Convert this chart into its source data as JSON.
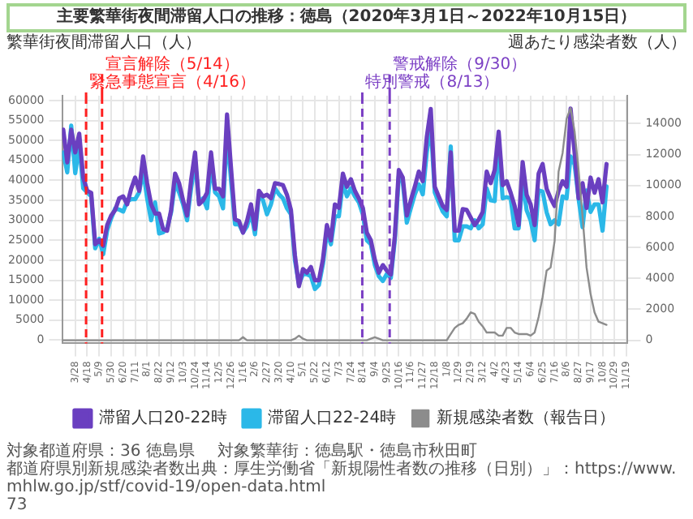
{
  "chart_data": {
    "type": "line",
    "title": "主要繁華街夜間滞留人口の推移：徳島（2020年3月1日～2022年10月15日）",
    "ylabel": "繁華街夜間滞留人口（人）",
    "y2label": "週あたり感染者数（人）",
    "x": [
      "2020-03-07",
      "2020-03-14",
      "2020-03-21",
      "2020-03-28",
      "2020-04-04",
      "2020-04-11",
      "2020-04-18",
      "2020-04-25",
      "2020-05-02",
      "2020-05-09",
      "2020-05-16",
      "2020-05-23",
      "2020-05-30",
      "2020-06-06",
      "2020-06-13",
      "2020-06-20",
      "2020-06-27",
      "2020-07-04",
      "2020-07-11",
      "2020-07-18",
      "2020-07-25",
      "2020-08-01",
      "2020-08-08",
      "2020-08-15",
      "2020-08-22",
      "2020-08-29",
      "2020-09-05",
      "2020-09-12",
      "2020-09-19",
      "2020-09-26",
      "2020-10-03",
      "2020-10-10",
      "2020-10-17",
      "2020-10-24",
      "2020-10-31",
      "2020-11-07",
      "2020-11-14",
      "2020-11-21",
      "2020-11-28",
      "2020-12-05",
      "2020-12-12",
      "2020-12-19",
      "2020-12-26",
      "2021-01-02",
      "2021-01-09",
      "2021-01-16",
      "2021-01-23",
      "2021-01-30",
      "2021-02-06",
      "2021-02-13",
      "2021-02-20",
      "2021-02-27",
      "2021-03-06",
      "2021-03-13",
      "2021-03-20",
      "2021-03-27",
      "2021-04-03",
      "2021-04-10",
      "2021-04-17",
      "2021-04-24",
      "2021-05-01",
      "2021-05-08",
      "2021-05-15",
      "2021-05-22",
      "2021-05-29",
      "2021-06-05",
      "2021-06-12",
      "2021-06-19",
      "2021-06-26",
      "2021-07-03",
      "2021-07-10",
      "2021-07-17",
      "2021-07-24",
      "2021-07-31",
      "2021-08-07",
      "2021-08-14",
      "2021-08-21",
      "2021-08-28",
      "2021-09-04",
      "2021-09-11",
      "2021-09-18",
      "2021-09-25",
      "2021-10-02",
      "2021-10-09",
      "2021-10-16",
      "2021-10-23",
      "2021-10-30",
      "2021-11-06",
      "2021-11-13",
      "2021-11-20",
      "2021-11-27",
      "2021-12-04",
      "2021-12-11",
      "2021-12-18",
      "2021-12-25",
      "2022-01-01",
      "2022-01-08",
      "2022-01-15",
      "2022-01-22",
      "2022-01-29",
      "2022-02-05",
      "2022-02-12",
      "2022-02-19",
      "2022-02-26",
      "2022-03-05",
      "2022-03-12",
      "2022-03-19",
      "2022-03-26",
      "2022-04-02",
      "2022-04-09",
      "2022-04-16",
      "2022-04-23",
      "2022-04-30",
      "2022-05-07",
      "2022-05-14",
      "2022-05-21",
      "2022-05-28",
      "2022-06-04",
      "2022-06-11",
      "2022-06-18",
      "2022-06-25",
      "2022-07-02",
      "2022-07-09",
      "2022-07-16",
      "2022-07-23",
      "2022-07-30",
      "2022-08-06",
      "2022-08-13",
      "2022-08-20",
      "2022-08-27",
      "2022-09-03",
      "2022-09-10",
      "2022-09-17",
      "2022-09-24",
      "2022-10-01",
      "2022-10-08",
      "2022-10-15"
    ],
    "series": [
      {
        "name": "滞留人口20-22時",
        "color": "#6a3fc0",
        "values": [
          52700,
          44500,
          52700,
          47000,
          51700,
          40700,
          37400,
          36900,
          24000,
          25000,
          23600,
          28800,
          31200,
          32600,
          35500,
          36000,
          34000,
          37900,
          40700,
          37400,
          46000,
          39300,
          34000,
          31700,
          31700,
          27800,
          27400,
          32600,
          41700,
          39300,
          35000,
          31200,
          40000,
          47000,
          34000,
          35000,
          36900,
          47000,
          37900,
          37900,
          36000,
          56500,
          43100,
          30200,
          29800,
          26900,
          29800,
          34000,
          27800,
          37400,
          36000,
          36400,
          35500,
          39300,
          39100,
          38800,
          36400,
          32600,
          21200,
          13500,
          17800,
          16900,
          18300,
          15000,
          15000,
          20200,
          28800,
          25000,
          34000,
          33100,
          41700,
          38400,
          40300,
          37400,
          35500,
          33100,
          26900,
          25000,
          20200,
          16900,
          18800,
          17400,
          16400,
          26000,
          42600,
          40700,
          31200,
          35000,
          38400,
          42200,
          39800,
          50800,
          57900,
          38400,
          36000,
          33600,
          32600,
          47000,
          27400,
          27400,
          32800,
          32600,
          30700,
          28800,
          30200,
          32100,
          42200,
          39300,
          42600,
          52200,
          38800,
          39800,
          36900,
          33600,
          28800,
          44600,
          36400,
          34000,
          28800,
          41700,
          44100,
          37900,
          35500,
          33600,
          37400,
          39800,
          38400,
          58000,
          47000,
          35500,
          39300,
          33100,
          40700,
          36900,
          40300,
          34500,
          44100
        ]
      },
      {
        "name": "滞留人口22-24時",
        "color": "#2bb8e8",
        "values": [
          47000,
          42000,
          53700,
          41800,
          49000,
          38000,
          37000,
          36000,
          23000,
          25400,
          21500,
          27500,
          30500,
          33000,
          32700,
          32200,
          34700,
          35300,
          35300,
          37000,
          42500,
          35500,
          30000,
          34500,
          26700,
          27000,
          28000,
          32000,
          39500,
          37000,
          34000,
          30000,
          38000,
          44500,
          34500,
          35500,
          33000,
          44000,
          37000,
          36000,
          33000,
          52000,
          40000,
          29000,
          29000,
          27000,
          28500,
          32000,
          26500,
          36500,
          35000,
          31500,
          34000,
          38000,
          36500,
          35500,
          33000,
          31500,
          20000,
          14000,
          16500,
          16500,
          16000,
          12800,
          13800,
          19000,
          27000,
          24000,
          31000,
          31000,
          39500,
          36000,
          38000,
          36000,
          34500,
          31500,
          25000,
          24000,
          18800,
          16000,
          14800,
          16600,
          15600,
          25000,
          41000,
          39500,
          29400,
          33000,
          36500,
          39000,
          36500,
          47000,
          54000,
          37000,
          34500,
          32200,
          31000,
          48500,
          25000,
          25000,
          28500,
          28500,
          28000,
          30000,
          28000,
          29000,
          38000,
          35000,
          34800,
          49500,
          35500,
          35800,
          35500,
          28000,
          28000,
          40000,
          32500,
          30000,
          25000,
          37500,
          37200,
          32000,
          29000,
          30000,
          29000,
          36000,
          35500,
          46000,
          44000,
          35500,
          28300,
          37500,
          32100,
          34000,
          34000,
          27400,
          38500
        ]
      },
      {
        "name": "新規感染者数（報告日）",
        "color": "#8c8c8c",
        "axis": "y2",
        "values": [
          0,
          0,
          0,
          0,
          0,
          0,
          0,
          0,
          0,
          0,
          0,
          0,
          0,
          0,
          0,
          0,
          0,
          0,
          0,
          0,
          0,
          0,
          0,
          0,
          0,
          0,
          0,
          0,
          0,
          0,
          0,
          0,
          0,
          0,
          0,
          0,
          0,
          0,
          0,
          0,
          0,
          0,
          0,
          0,
          0,
          200,
          0,
          0,
          0,
          0,
          0,
          0,
          0,
          0,
          0,
          0,
          0,
          0,
          100,
          300,
          100,
          0,
          0,
          0,
          0,
          0,
          0,
          0,
          0,
          0,
          0,
          0,
          0,
          0,
          0,
          0,
          0,
          100,
          200,
          100,
          0,
          0,
          0,
          0,
          0,
          0,
          0,
          0,
          0,
          0,
          0,
          0,
          0,
          0,
          0,
          0,
          0,
          400,
          800,
          1000,
          1100,
          1400,
          1800,
          1700,
          1200,
          900,
          500,
          500,
          500,
          300,
          300,
          800,
          800,
          500,
          400,
          400,
          400,
          300,
          500,
          1500,
          2800,
          4500,
          4700,
          6400,
          10900,
          12100,
          14300,
          15000,
          13500,
          11000,
          8000,
          4700,
          3000,
          1800,
          1200,
          1100,
          1000
        ]
      }
    ],
    "xlim": [
      "2020-03-05",
      "2022-11-21"
    ],
    "xticks": [
      {
        "value": "2020-03-28",
        "label": "3/28"
      },
      {
        "value": "2020-04-18",
        "label": "4/18"
      },
      {
        "value": "2020-05-09",
        "label": "5/9"
      },
      {
        "value": "2020-05-30",
        "label": "5/30"
      },
      {
        "value": "2020-06-20",
        "label": "6/20"
      },
      {
        "value": "2020-07-11",
        "label": "7/11"
      },
      {
        "value": "2020-08-01",
        "label": "8/1"
      },
      {
        "value": "2020-08-22",
        "label": "8/22"
      },
      {
        "value": "2020-09-12",
        "label": "9/12"
      },
      {
        "value": "2020-10-03",
        "label": "10/3"
      },
      {
        "value": "2020-10-24",
        "label": "10/24"
      },
      {
        "value": "2020-11-14",
        "label": "11/14"
      },
      {
        "value": "2020-12-05",
        "label": "12/5"
      },
      {
        "value": "2020-12-26",
        "label": "12/26"
      },
      {
        "value": "2021-01-16",
        "label": "1/16"
      },
      {
        "value": "2021-02-06",
        "label": "2/6"
      },
      {
        "value": "2021-02-27",
        "label": "2/27"
      },
      {
        "value": "2021-03-20",
        "label": "3/20"
      },
      {
        "value": "2021-04-10",
        "label": "4/10"
      },
      {
        "value": "2021-05-01",
        "label": "5/1"
      },
      {
        "value": "2021-05-22",
        "label": "5/22"
      },
      {
        "value": "2021-06-12",
        "label": "6/12"
      },
      {
        "value": "2021-07-03",
        "label": "7/3"
      },
      {
        "value": "2021-07-24",
        "label": "7/24"
      },
      {
        "value": "2021-08-14",
        "label": "8/14"
      },
      {
        "value": "2021-09-04",
        "label": "9/4"
      },
      {
        "value": "2021-09-25",
        "label": "9/25"
      },
      {
        "value": "2021-10-16",
        "label": "10/16"
      },
      {
        "value": "2021-11-06",
        "label": "11/6"
      },
      {
        "value": "2021-11-27",
        "label": "11/27"
      },
      {
        "value": "2021-12-18",
        "label": "12/18"
      },
      {
        "value": "2022-01-08",
        "label": "1/8"
      },
      {
        "value": "2022-01-29",
        "label": "1/29"
      },
      {
        "value": "2022-02-19",
        "label": "2/19"
      },
      {
        "value": "2022-03-12",
        "label": "3/12"
      },
      {
        "value": "2022-04-02",
        "label": "4/2"
      },
      {
        "value": "2022-04-23",
        "label": "4/23"
      },
      {
        "value": "2022-05-14",
        "label": "5/14"
      },
      {
        "value": "2022-06-04",
        "label": "6/4"
      },
      {
        "value": "2022-06-25",
        "label": "6/25"
      },
      {
        "value": "2022-07-16",
        "label": "7/16"
      },
      {
        "value": "2022-08-06",
        "label": "8/6"
      },
      {
        "value": "2022-08-27",
        "label": "8/27"
      },
      {
        "value": "2022-09-17",
        "label": "9/17"
      },
      {
        "value": "2022-10-08",
        "label": "10/8"
      },
      {
        "value": "2022-10-29",
        "label": "10/29"
      },
      {
        "value": "2022-11-19",
        "label": "11/19"
      }
    ],
    "ylim": [
      -800,
      61200
    ],
    "yticks": [
      0,
      5000,
      10000,
      15000,
      20000,
      25000,
      30000,
      35000,
      40000,
      45000,
      50000,
      55000,
      60000
    ],
    "y2lim": [
      -200,
      15800
    ],
    "y2ticks": [
      0,
      2000,
      4000,
      6000,
      8000,
      10000,
      12000,
      14000
    ],
    "ref_lines": [
      {
        "axis": "x",
        "value": "2020-04-16",
        "label": "緊急事態宣言（4/16）",
        "color": "#ff2020",
        "line_style": "dashed"
      },
      {
        "axis": "x",
        "value": "2020-05-14",
        "label": "宣言解除（5/14）",
        "color": "#ff2020",
        "line_style": "dashed"
      },
      {
        "axis": "x",
        "value": "2021-08-13",
        "label": "特別警戒（8/13）",
        "color": "#7b3fc4",
        "line_style": "dashed"
      },
      {
        "axis": "x",
        "value": "2021-09-30",
        "label": "警戒解除（9/30）",
        "color": "#7b3fc4",
        "line_style": "dashed"
      }
    ],
    "grid": true,
    "legend": "bottom",
    "marker": "none",
    "annotations": [
      "対象都道府県：36 徳島県",
      "対象繁華街：徳島駅・徳島市秋田町",
      "都道府県別新規感染者数出典：厚生労働省「新規陽性者数の推移（日別）」：https://www.mhlw.go.jp/stf/covid-19/open-data.html",
      "73"
    ]
  }
}
